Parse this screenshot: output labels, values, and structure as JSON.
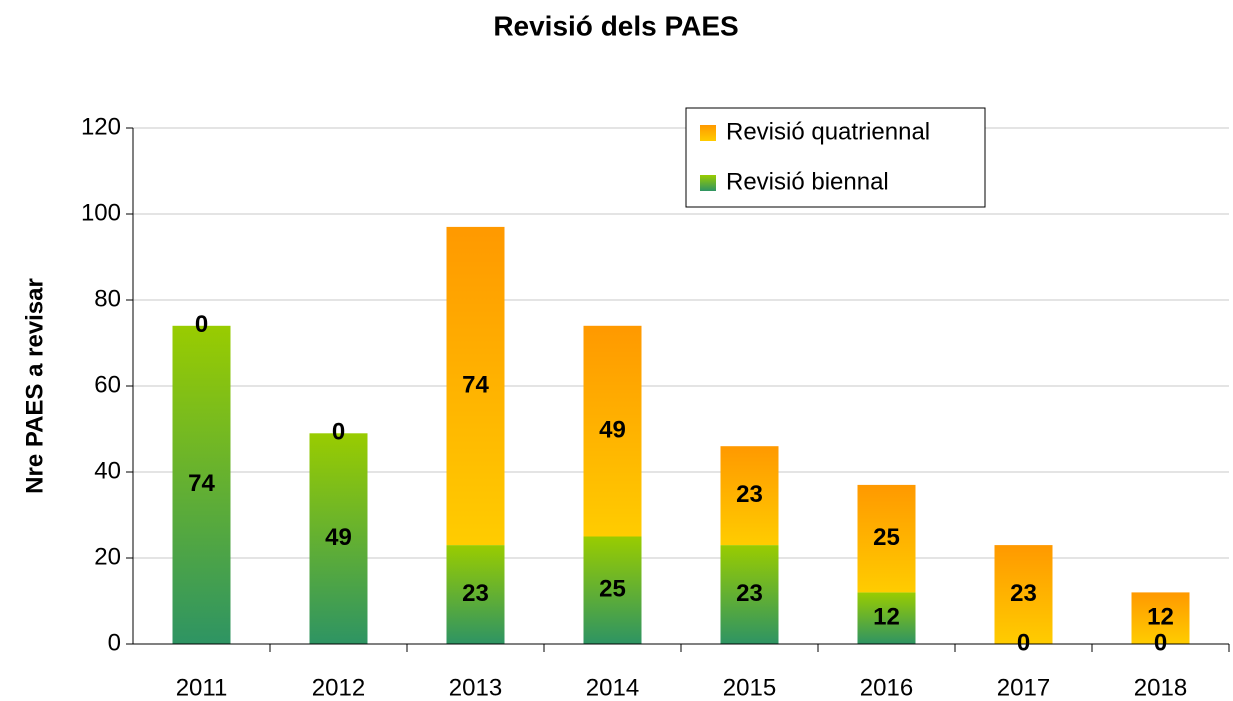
{
  "chart_data": {
    "type": "stacked_bar",
    "title": "Revisió dels PAES",
    "ylabel": "Nre PAES a revisar",
    "categories": [
      "2011",
      "2012",
      "2013",
      "2014",
      "2015",
      "2016",
      "2017",
      "2018"
    ],
    "series": [
      {
        "name": "Revisió biennal",
        "color": "#5cb030",
        "values": [
          74,
          49,
          23,
          25,
          23,
          12,
          0,
          0
        ]
      },
      {
        "name": "Revisió quatriennal",
        "color": "#ffb300",
        "values": [
          0,
          0,
          74,
          49,
          23,
          25,
          23,
          12
        ]
      }
    ],
    "ylim": [
      0,
      120
    ],
    "yticks": [
      0,
      20,
      40,
      60,
      80,
      100,
      120
    ],
    "grid": true,
    "legend": "top-right"
  }
}
